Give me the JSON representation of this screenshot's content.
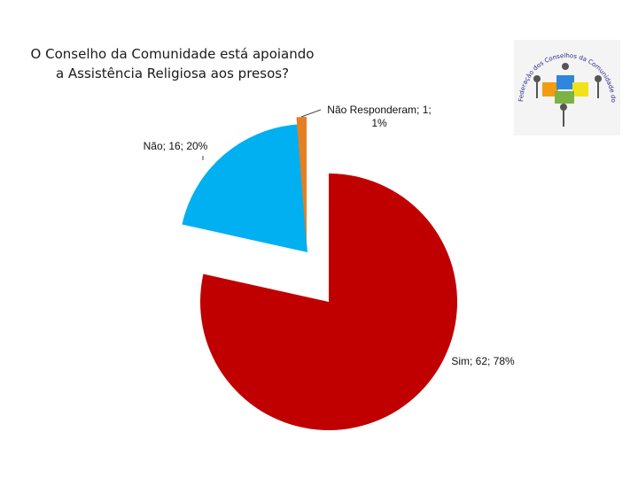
{
  "title": {
    "line1": "O Conselho da Comunidade está apoiando",
    "line2": "a Assistência Religiosa aos presos?"
  },
  "logo": {
    "text": "Federação dos Conselhos da Comunidade do Paraná",
    "icon": "puzzle-people-icon"
  },
  "chart_data": {
    "type": "pie",
    "title": "O Conselho da Comunidade está apoiando a Assistência Religiosa aos presos?",
    "slices": [
      {
        "name": "Sim",
        "value": 62,
        "percent": 78,
        "label": "Sim; 62; 78%",
        "color": "#c00000"
      },
      {
        "name": "Não",
        "value": 16,
        "percent": 20,
        "label": "Não; 16; 20%",
        "color": "#00b0f0"
      },
      {
        "name": "Não Responderam",
        "value": 1,
        "percent": 1,
        "label_lines": [
          "Não Responderam; 1;",
          "1%"
        ],
        "color": "#e67e22"
      }
    ],
    "exploded": true,
    "legend": "none"
  }
}
